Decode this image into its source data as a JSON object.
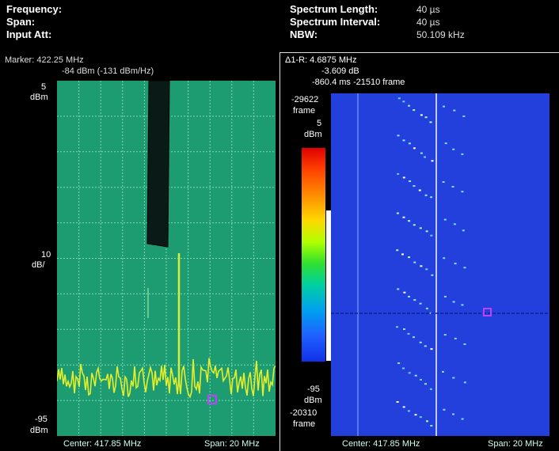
{
  "header": {
    "frequency_label": "Frequency:",
    "span_label": "Span:",
    "input_att_label": "Input Att:",
    "spectrum_length_label": "Spectrum Length:",
    "spectrum_length_value": "40 µs",
    "spectrum_interval_label": "Spectrum Interval:",
    "spectrum_interval_value": "40 µs",
    "nbw_label": "NBW:",
    "nbw_value": "50.109 kHz"
  },
  "spectrum": {
    "marker_line1": "Marker: 422.25 MHz",
    "marker_line2": "-84 dBm (-131 dBm/Hz)",
    "top_value": "5",
    "top_unit": "dBm",
    "scale_value": "10",
    "scale_unit": "dB/",
    "bottom_value": "-95",
    "bottom_unit": "dBm",
    "center": "Center: 417.85 MHz",
    "span": "Span: 20 MHz"
  },
  "spectrogram": {
    "delta_line1": "Δ1-R: 4.6875 MHz",
    "delta_line2": "-3.609 dB",
    "delta_line3": "-860.4 ms   -21510 frame",
    "top_frame_value": "-29622",
    "top_frame_unit": "frame",
    "colorbar_top_value": "5",
    "colorbar_top_unit": "dBm",
    "colorbar_bottom_value": "-95",
    "colorbar_bottom_unit": "dBm",
    "bottom_frame_value": "-20310",
    "bottom_frame_unit": "frame",
    "center": "Center: 417.85 MHz",
    "span": "Span: 20 MHz"
  },
  "colors": {
    "spectrum_background": "#1d9c72",
    "trace": "#e6ee2a",
    "spectrogram_background": "#2340dd"
  }
}
